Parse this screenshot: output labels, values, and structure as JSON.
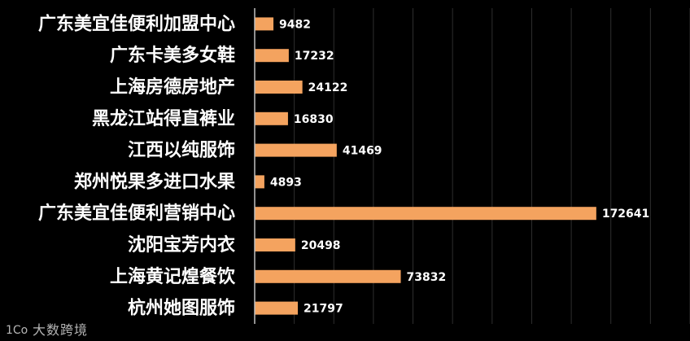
{
  "chart_data": {
    "type": "bar",
    "orientation": "horizontal",
    "categories": [
      "广东美宜佳便利加盟中心",
      "广东卡美多女鞋",
      "上海房德房地产",
      "黑龙江站得直裤业",
      "江西以纯服饰",
      "郑州悦果多进口水果",
      "广东美宜佳便利营销中心",
      "沈阳宝芳内衣",
      "上海黄记煌餐饮",
      "杭州她图服饰"
    ],
    "values": [
      9482,
      17232,
      24122,
      16830,
      41469,
      4893,
      172641,
      20498,
      73832,
      21797
    ],
    "xlim": [
      0,
      220000
    ],
    "grid": true,
    "bar_color": "#f4a35f",
    "background": "#000000"
  },
  "watermark": {
    "text": "大数跨境",
    "logo_text": "1Co"
  }
}
